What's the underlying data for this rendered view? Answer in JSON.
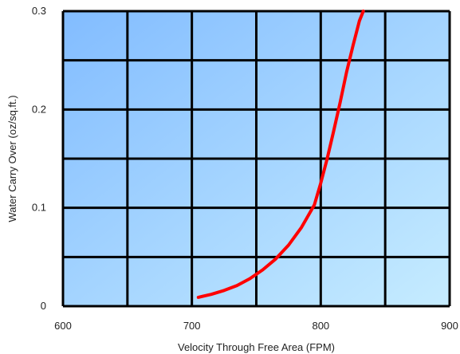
{
  "chart_data": {
    "type": "line",
    "title": "",
    "xlabel": "Velocity Through Free Area (FPM)",
    "ylabel": "Water Carry Over (oz/sq.ft.)",
    "xlim": [
      600,
      900
    ],
    "ylim": [
      0,
      0.3
    ],
    "x_ticks": [
      600,
      700,
      800,
      900
    ],
    "x_tick_labels": [
      "600",
      "700",
      "800",
      "900"
    ],
    "y_ticks": [
      0,
      0.1,
      0.2,
      0.3
    ],
    "y_tick_labels": [
      "0",
      "0.1",
      "0.2",
      "0.3"
    ],
    "grid": true,
    "grid_step_x": 50,
    "grid_step_y": 0.05,
    "plot_background": {
      "from": "#82bcff",
      "to": "#c6ecff"
    },
    "grid_color": "#000000",
    "series": [
      {
        "color": "#ff0000",
        "x": [
          705,
          715,
          725,
          735,
          745,
          755,
          765,
          775,
          785,
          795,
          800,
          805,
          810,
          815,
          820,
          825,
          830,
          833
        ],
        "y": [
          0.009,
          0.012,
          0.016,
          0.021,
          0.028,
          0.037,
          0.048,
          0.062,
          0.08,
          0.103,
          0.125,
          0.15,
          0.178,
          0.207,
          0.238,
          0.265,
          0.29,
          0.3
        ]
      }
    ]
  }
}
